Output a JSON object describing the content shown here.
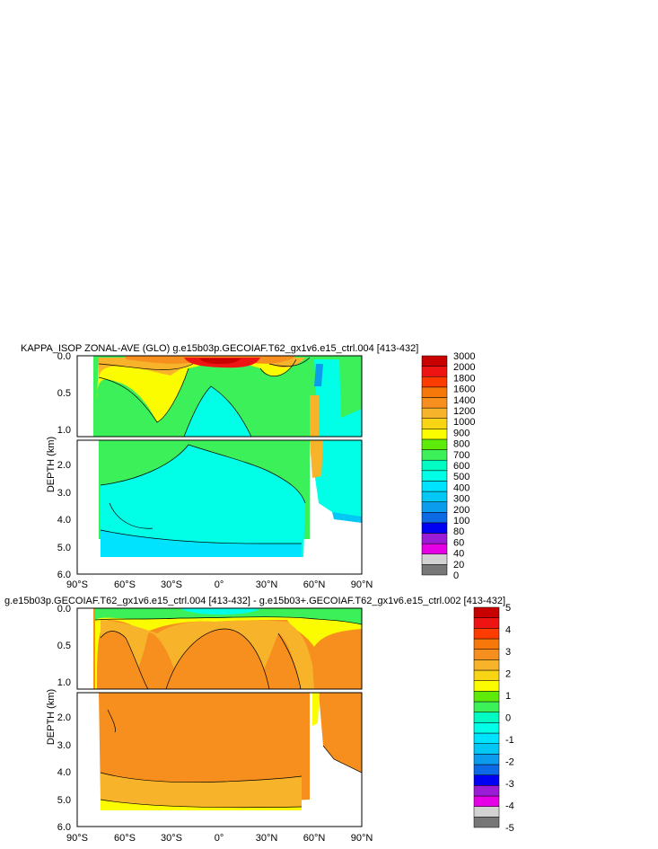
{
  "chart_data": [
    {
      "type": "heatmap",
      "title": "KAPPA_ISOP ZONAL-AVE (GLO) g.e15b03p.GECOIAF.T62_gx1v6.e15_ctrl.004 [413-432]",
      "xlabel": "",
      "ylabel": "DEPTH (km)",
      "x_ticks": [
        "90°S",
        "60°S",
        "30°S",
        "0°",
        "30°N",
        "60°N",
        "90°N"
      ],
      "y_ticks_upper": [
        "0.0",
        "0.5",
        "1.0"
      ],
      "y_ticks_lower": [
        "2.0",
        "3.0",
        "4.0",
        "5.0",
        "6.0"
      ],
      "colorbar_labels": [
        "3000",
        "2000",
        "1800",
        "1600",
        "1400",
        "1200",
        "1000",
        "900",
        "800",
        "700",
        "600",
        "500",
        "400",
        "300",
        "200",
        "100",
        "80",
        "60",
        "40",
        "20",
        "0"
      ],
      "fields": [
        {
          "depth": [
            0.0,
            0.05
          ],
          "lat": [
            -75,
            60
          ],
          "level": 1000
        },
        {
          "depth": [
            0.0,
            0.3
          ],
          "lat": [
            -75,
            60
          ],
          "level": 700
        },
        {
          "depth": [
            0.3,
            2.0
          ],
          "lat": [
            -75,
            60
          ],
          "level": 700
        },
        {
          "depth": [
            2.0,
            5.4
          ],
          "lat": [
            -75,
            55
          ],
          "level": 500
        },
        {
          "depth": [
            0.0,
            0.04
          ],
          "lat": [
            -10,
            20
          ],
          "level": 2000
        },
        {
          "depth": [
            0.3,
            2.0
          ],
          "lat": [
            60,
            75
          ],
          "level": 1200
        }
      ]
    },
    {
      "type": "heatmap",
      "title": "g.e15b03p.GECOIAF.T62_gx1v6.e15_ctrl.004 [413-432] - g.e15b03+.GECOIAF.T62_gx1v6.e15_ctrl.002 [413-432]",
      "xlabel": "",
      "ylabel": "DEPTH (km)",
      "x_ticks": [
        "90°S",
        "60°S",
        "30°S",
        "0°",
        "30°N",
        "60°N",
        "90°N"
      ],
      "y_ticks_upper": [
        "0.0",
        "0.5",
        "1.0"
      ],
      "y_ticks_lower": [
        "2.0",
        "3.0",
        "4.0",
        "5.0",
        "6.0"
      ],
      "colorbar_labels": [
        "5",
        "4",
        "3",
        "2",
        "1",
        "0",
        "-1",
        "-2",
        "-3",
        "-4",
        "-5"
      ],
      "fields": [
        {
          "depth": [
            0.0,
            0.1
          ],
          "lat": [
            -75,
            90
          ],
          "level": 700
        },
        {
          "depth": [
            0.1,
            0.4
          ],
          "lat": [
            -75,
            90
          ],
          "level": 900
        },
        {
          "depth": [
            0.4,
            5.4
          ],
          "lat": [
            -75,
            55
          ],
          "level": 1200
        }
      ]
    }
  ],
  "colors": {
    "palette": [
      "#777777",
      "#d2d2d2",
      "#e600e6",
      "#9a1cd6",
      "#0000f2",
      "#0c6ae6",
      "#0c9ced",
      "#03c8f5",
      "#00e3ff",
      "#00ffe6",
      "#00fbc3",
      "#3cf05a",
      "#5eeb0a",
      "#fcfc00",
      "#f7d414",
      "#f7b42b",
      "#f78f1e",
      "#f7780a",
      "#ff3c00",
      "#ef1414",
      "#c80000"
    ]
  }
}
